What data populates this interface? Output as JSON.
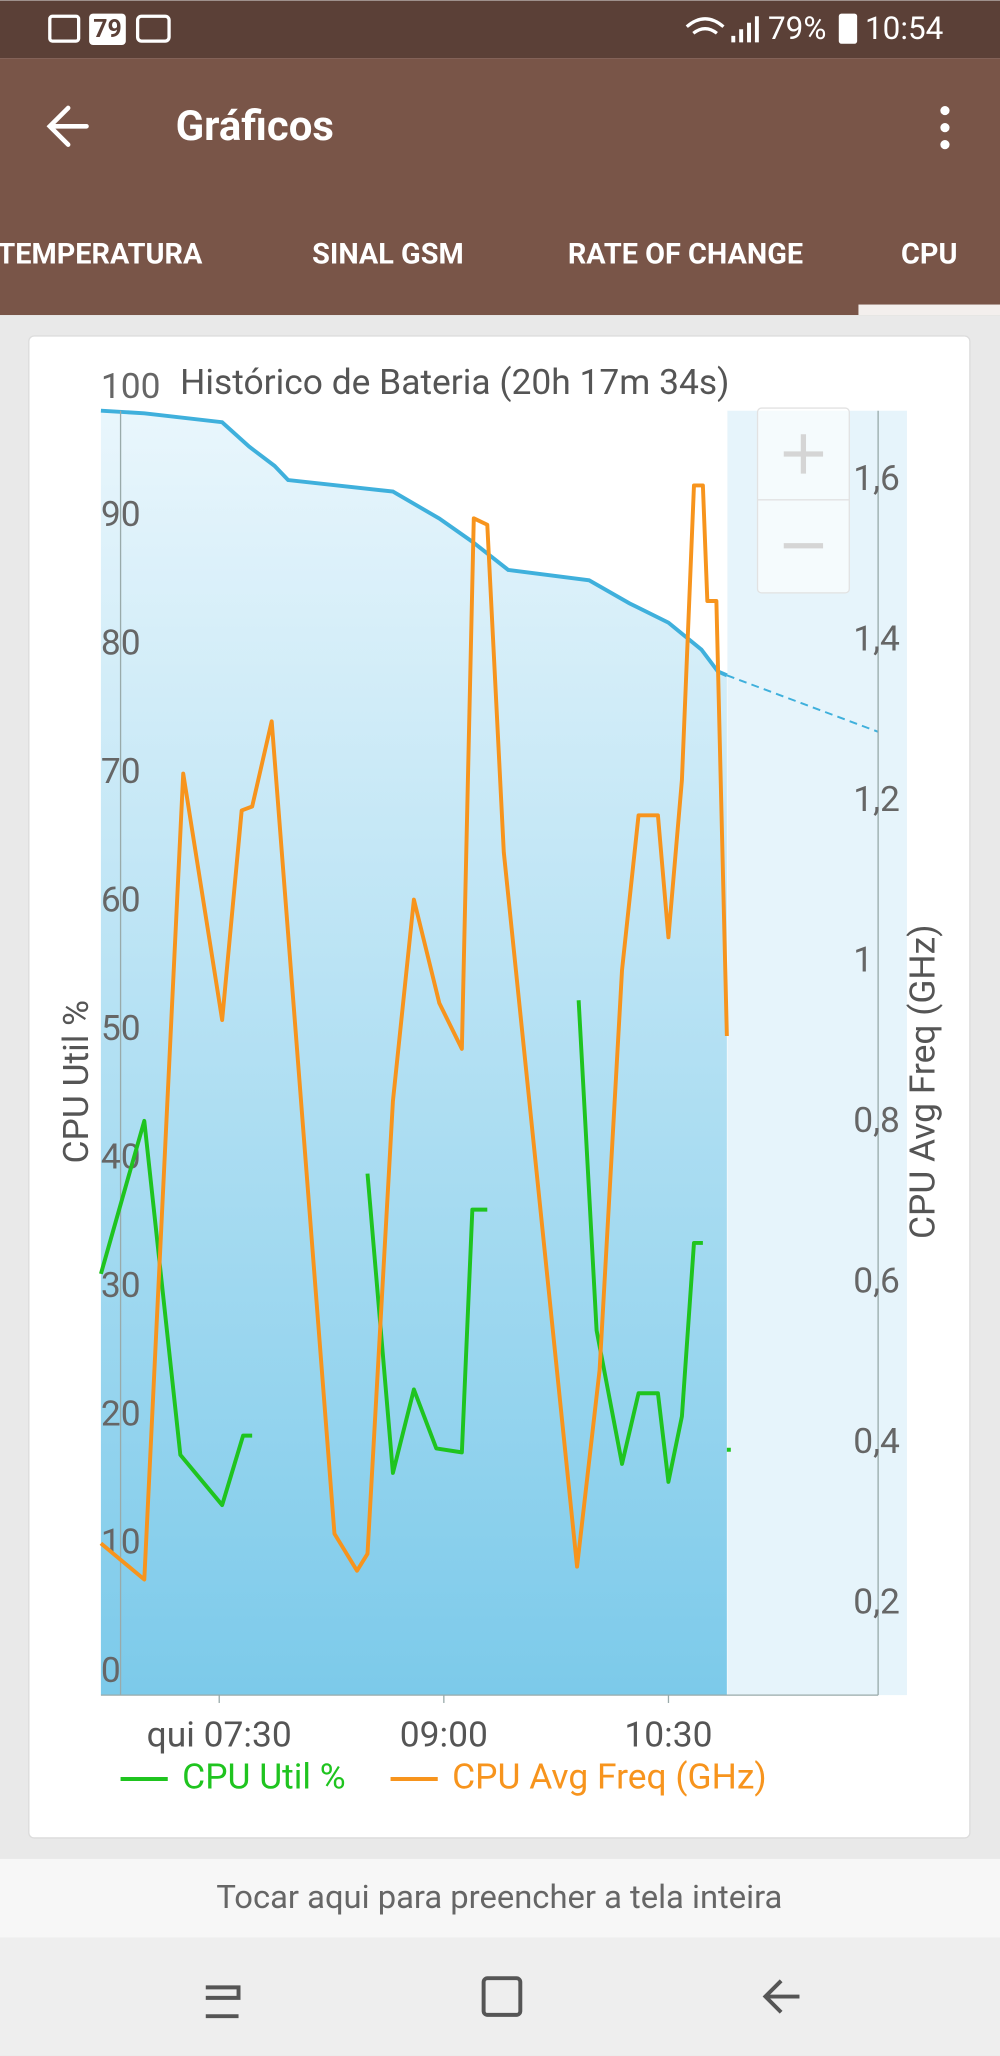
{
  "status_bar": {
    "notification_badge": "79",
    "battery": "79%",
    "time": "10:54"
  },
  "app_bar": {
    "title": "Gráficos"
  },
  "tabs": [
    "TEMPERATURA",
    "SINAL GSM",
    "RATE OF CHANGE",
    "CPU"
  ],
  "chart_data": {
    "type": "line",
    "title": "Histórico de Bateria (20h 17m 34s)",
    "y_label": "CPU Util %",
    "y2_label": "CPU Avg Freq (GHz)",
    "xlim": [
      6.71,
      11.9
    ],
    "xticks": [
      {
        "value": 7.5,
        "label": "qui 07:30"
      },
      {
        "value": 9.0,
        "label": "09:00"
      },
      {
        "value": 10.5,
        "label": "10:30"
      }
    ],
    "ylim": [
      0,
      100
    ],
    "yticks": [
      0,
      10,
      20,
      30,
      40,
      50,
      60,
      70,
      80,
      90,
      100
    ],
    "y2lim": [
      0.1,
      1.7
    ],
    "y2ticks": [
      {
        "value": 0.2,
        "label": "0,2"
      },
      {
        "value": 0.4,
        "label": "0,4"
      },
      {
        "value": 0.6,
        "label": "0,6"
      },
      {
        "value": 0.8,
        "label": "0,8"
      },
      1,
      {
        "value": 1.2,
        "label": "1,2"
      },
      {
        "value": 1.4,
        "label": "1,4"
      },
      {
        "value": 1.6,
        "label": "1,6"
      }
    ],
    "grid": false,
    "battery": [
      {
        "color": "#3fb0dc",
        "fill": true,
        "x": [
          6.71,
          7.0,
          7.52,
          7.7,
          7.87,
          7.96,
          8.66,
          8.97,
          9.19,
          9.43,
          9.97,
          10.24,
          10.5,
          10.72,
          10.83,
          10.89
        ],
        "values": [
          100,
          99.8,
          99.1,
          97.2,
          95.7,
          94.6,
          93.7,
          91.6,
          89.8,
          87.6,
          86.8,
          85,
          83.5,
          81.4,
          79.7,
          79.4
        ]
      },
      {
        "color": "#3fb0dc",
        "dashed": true,
        "x": [
          10.89,
          11.9
        ],
        "values": [
          79.4,
          75.0
        ]
      }
    ],
    "series": [
      {
        "name": "CPU Util %",
        "color": "#1fc41f",
        "x": [
          6.71,
          7.0,
          7.24,
          7.52,
          7.66,
          7.72,
          8.1,
          8.49,
          8.66,
          8.8,
          8.95,
          9.12,
          9.19,
          9.29,
          9.6,
          9.9,
          10.02,
          10.19,
          10.3,
          10.43,
          10.5,
          10.59,
          10.67,
          10.73,
          10.8,
          10.89
        ],
        "values": [
          32.8,
          44.7,
          18.7,
          14.8,
          20.2,
          20.2,
          null,
          40.6,
          17.3,
          23.8,
          19.2,
          18.9,
          37.8,
          37.8,
          null,
          54.1,
          28.4,
          18.0,
          23.5,
          23.5,
          16.6,
          21.7,
          35.2,
          35.2,
          null,
          19.1
        ]
      },
      {
        "name": "CPU Avg Freq (GHz)",
        "color": "#f7941d",
        "axis": "y2",
        "x": [
          6.71,
          7.0,
          7.26,
          7.52,
          7.65,
          7.72,
          7.85,
          8.27,
          8.42,
          8.49,
          8.66,
          8.8,
          8.97,
          9.12,
          9.2,
          9.29,
          9.4,
          9.89,
          10.04,
          10.19,
          10.3,
          10.43,
          10.5,
          10.59,
          10.67,
          10.73,
          10.76,
          10.82,
          10.89
        ],
        "values": [
          0.289,
          0.244,
          1.248,
          0.941,
          1.202,
          1.207,
          1.313,
          0.301,
          0.255,
          0.276,
          0.84,
          1.091,
          0.962,
          0.905,
          1.566,
          1.558,
          1.15,
          0.26,
          0.505,
          1.003,
          1.196,
          1.196,
          1.044,
          1.24,
          1.607,
          1.607,
          1.463,
          1.463,
          0.921
        ]
      }
    ]
  },
  "footer": {
    "hint": "Tocar aqui para preencher a tela inteira"
  }
}
